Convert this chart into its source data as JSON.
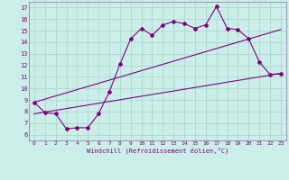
{
  "xlabel": "Windchill (Refroidissement éolien,°C)",
  "bg_color": "#cceee8",
  "grid_color": "#aad8d2",
  "line_color": "#800080",
  "spine_color": "#8888aa",
  "xlim": [
    -0.5,
    23.5
  ],
  "ylim": [
    5.5,
    17.5
  ],
  "xticks": [
    0,
    1,
    2,
    3,
    4,
    5,
    6,
    7,
    8,
    9,
    10,
    11,
    12,
    13,
    14,
    15,
    16,
    17,
    18,
    19,
    20,
    21,
    22,
    23
  ],
  "yticks": [
    6,
    7,
    8,
    9,
    10,
    11,
    12,
    13,
    14,
    15,
    16,
    17
  ],
  "series1_x": [
    0,
    1,
    2,
    3,
    4,
    5,
    6,
    7,
    8,
    9,
    10,
    11,
    12,
    13,
    14,
    15,
    16,
    17,
    18,
    19,
    20,
    21,
    22,
    23
  ],
  "series1_y": [
    8.8,
    7.9,
    7.8,
    6.5,
    6.6,
    6.6,
    7.8,
    9.7,
    12.1,
    14.3,
    15.2,
    14.6,
    15.5,
    15.8,
    15.6,
    15.2,
    15.5,
    17.1,
    15.2,
    15.1,
    14.3,
    12.3,
    11.2,
    11.3
  ],
  "series2_x": [
    0,
    23
  ],
  "series2_y": [
    7.8,
    11.3
  ],
  "series3_x": [
    0,
    23
  ],
  "series3_y": [
    8.8,
    15.1
  ],
  "figsize": [
    3.2,
    2.0
  ],
  "dpi": 100
}
